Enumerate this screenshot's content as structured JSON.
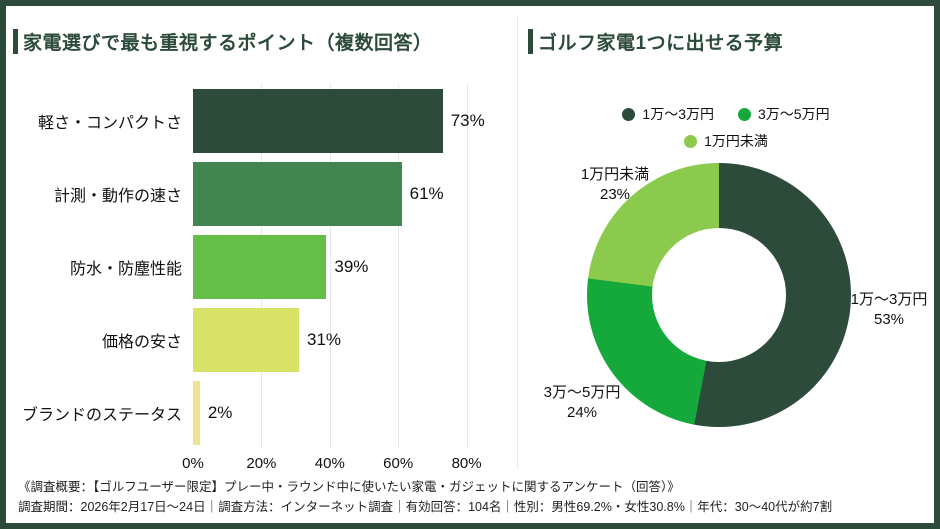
{
  "page": {
    "frame_color": "#2d4b3b",
    "background": "#ffffff",
    "divider_color": "#eceade",
    "gridline_color": "#e7e7e7"
  },
  "chart_data": [
    {
      "type": "bar",
      "orientation": "horizontal",
      "title": "家電選びで最も重視するポイント（複数回答）",
      "categories": [
        "軽さ・コンパクトさ",
        "計測・動作の速さ",
        "防水・防塵性能",
        "価格の安さ",
        "ブランドのステータス"
      ],
      "values": [
        73,
        61,
        39,
        31,
        2
      ],
      "value_labels": [
        "73%",
        "61%",
        "39%",
        "31%",
        "2%"
      ],
      "bar_colors": [
        "#2d4b3b",
        "#43854f",
        "#64be48",
        "#d7e266",
        "#eee494"
      ],
      "unit": "%",
      "xlim": [
        0,
        88
      ],
      "x_ticks": [
        0,
        20,
        40,
        60,
        80
      ],
      "x_tick_labels": [
        "0%",
        "20%",
        "40%",
        "60%",
        "80%"
      ],
      "grid": true
    },
    {
      "type": "pie",
      "subtype": "donut",
      "title": "ゴルフ家電1つに出せる予算",
      "labels": [
        "1万〜3万円",
        "3万〜5万円",
        "1万円未満"
      ],
      "values": [
        53,
        24,
        23
      ],
      "pct_labels": [
        "53%",
        "24%",
        "23%"
      ],
      "colors": [
        "#2d4b3b",
        "#15a93c",
        "#8cca4e"
      ],
      "start_angle_deg": 0,
      "direction": "clockwise",
      "legend_position": "top"
    }
  ],
  "footer": {
    "line1": "《調査概要：【ゴルフユーザー限定】プレー中・ラウンド中に使いたい家電・ガジェットに関するアンケート（回答）》",
    "line2": "調査期間：2026年2月17日〜24日｜調査方法：インターネット調査｜有効回答：104名｜性別：男性69.2%・女性30.8%｜年代：30〜40代が約7割"
  }
}
